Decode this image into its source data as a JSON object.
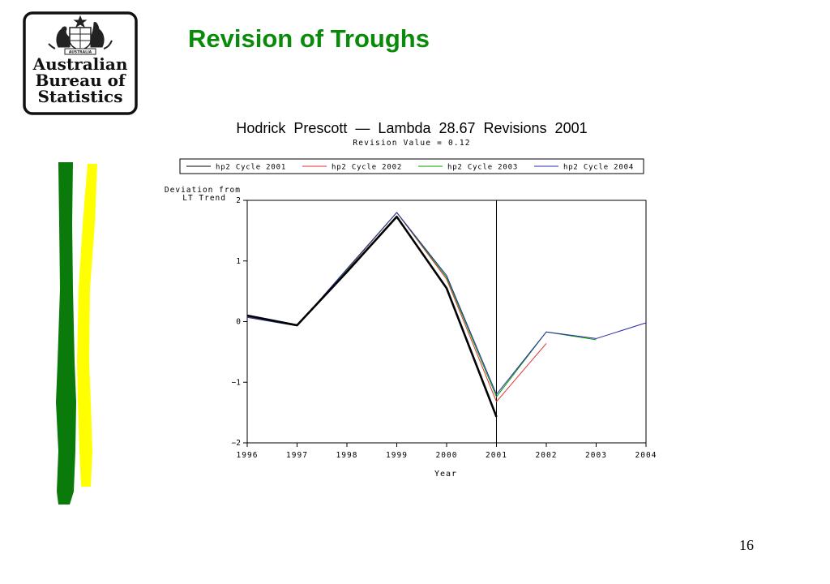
{
  "slide": {
    "title": "Revision of Troughs",
    "page_number": "16",
    "title_color": "#0a8a0a"
  },
  "logo": {
    "lines": [
      "Australian",
      "Bureau of",
      "Statistics"
    ],
    "crest_text": "AUSTRALIA"
  },
  "decor": {
    "strip_colors": [
      "#0a7a0a",
      "#ffff00"
    ]
  },
  "chart_data": {
    "type": "line",
    "title": "Hodrick  Prescott  —  Lambda  28.67  Revisions  2001",
    "subtitle": "Revision Value = 0.12",
    "xlabel": "Year",
    "ylabel": [
      "Deviation from",
      "LT Trend"
    ],
    "x": [
      1996,
      1997,
      1998,
      1999,
      2000,
      2001,
      2002,
      2003,
      2004
    ],
    "xlim": [
      1996,
      2004
    ],
    "ylim": [
      -2,
      2
    ],
    "yticks": [
      2,
      1,
      0,
      -1,
      -2
    ],
    "ytick_labels": [
      "2",
      "1",
      "0",
      "−1",
      "−2"
    ],
    "grid": false,
    "legend_position": "top",
    "vline": 2001,
    "series": [
      {
        "name": "hp2 Cycle 2001",
        "color": "#000000",
        "width": 2.6,
        "x": [
          1996,
          1997,
          1998,
          1999,
          2000,
          2001
        ],
        "values": [
          0.1,
          -0.06,
          0.82,
          1.73,
          0.55,
          -1.57
        ]
      },
      {
        "name": "hp2 Cycle 2002",
        "color": "#e03030",
        "width": 1,
        "x": [
          1996,
          1997,
          1998,
          1999,
          2000,
          2001,
          2002
        ],
        "values": [
          0.08,
          -0.06,
          0.85,
          1.8,
          0.7,
          -1.32,
          -0.36
        ]
      },
      {
        "name": "hp2 Cycle 2003",
        "color": "#00a000",
        "width": 1,
        "x": [
          1996,
          1997,
          1998,
          1999,
          2000,
          2001,
          2002,
          2003
        ],
        "values": [
          0.07,
          -0.07,
          0.86,
          1.8,
          0.73,
          -1.24,
          -0.17,
          -0.3
        ]
      },
      {
        "name": "hp2 Cycle 2004",
        "color": "#2a2aa8",
        "width": 1,
        "x": [
          1996,
          1997,
          1998,
          1999,
          2000,
          2001,
          2002,
          2003,
          2004
        ],
        "values": [
          0.07,
          -0.07,
          0.87,
          1.8,
          0.76,
          -1.2,
          -0.17,
          -0.28,
          -0.02
        ]
      }
    ]
  }
}
